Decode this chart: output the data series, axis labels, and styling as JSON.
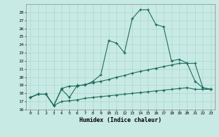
{
  "xlabel": "Humidex (Indice chaleur)",
  "xlim": [
    -0.5,
    23.5
  ],
  "ylim": [
    16,
    29
  ],
  "yticks": [
    16,
    17,
    18,
    19,
    20,
    21,
    22,
    23,
    24,
    25,
    26,
    27,
    28
  ],
  "xticks": [
    0,
    1,
    2,
    3,
    4,
    5,
    6,
    7,
    8,
    9,
    10,
    11,
    12,
    13,
    14,
    15,
    16,
    17,
    18,
    19,
    20,
    21,
    22,
    23
  ],
  "bg_color": "#c8eae4",
  "line_color": "#1a6b5a",
  "grid_color": "#b0d4cc",
  "line1_y": [
    17.5,
    17.9,
    17.9,
    16.5,
    18.5,
    17.5,
    19.0,
    19.0,
    19.5,
    20.3,
    24.5,
    24.2,
    23.0,
    27.2,
    28.3,
    28.3,
    26.5,
    26.2,
    22.0,
    22.2,
    21.7,
    19.5,
    18.7,
    18.5
  ],
  "line2_y": [
    17.5,
    17.9,
    17.9,
    16.5,
    18.6,
    18.9,
    18.9,
    19.1,
    19.3,
    19.5,
    19.7,
    20.0,
    20.2,
    20.5,
    20.7,
    20.9,
    21.1,
    21.3,
    21.5,
    21.7,
    21.7,
    21.7,
    18.7,
    18.5
  ],
  "line3_y": [
    17.5,
    17.9,
    17.9,
    16.5,
    17.0,
    17.1,
    17.2,
    17.4,
    17.5,
    17.6,
    17.7,
    17.8,
    17.9,
    18.0,
    18.1,
    18.2,
    18.3,
    18.4,
    18.5,
    18.6,
    18.7,
    18.5,
    18.5,
    18.5
  ]
}
